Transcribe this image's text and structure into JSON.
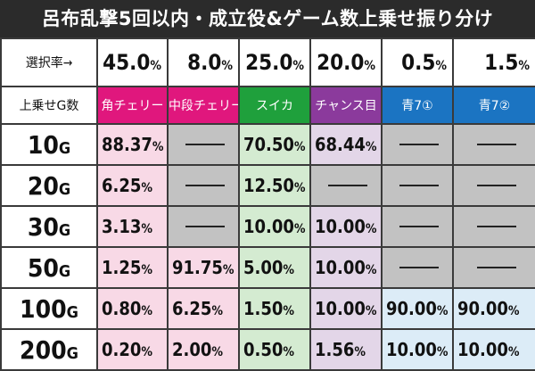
{
  "title": "呂布乱撃5回以内・成立役&ゲーム数上乗せ振り分け",
  "rate_label": "選択率→",
  "row_header_label": "上乗せG数",
  "columns": [
    {
      "name": "角チェリー",
      "rate": "45.0",
      "color": "#e0177d"
    },
    {
      "name": "中段チェリー",
      "rate": "8.0",
      "color": "#e0177d"
    },
    {
      "name": "スイカ",
      "rate": "25.0",
      "color": "#1fa03c"
    },
    {
      "name": "チャンス目",
      "rate": "20.0",
      "color": "#8b3a9c"
    },
    {
      "name": "青7①",
      "rate": "0.5",
      "color": "#1b74c2"
    },
    {
      "name": "青7②",
      "rate": "1.5",
      "color": "#1b74c2"
    }
  ],
  "pct_suffix": "%",
  "g_suffix": "G",
  "rows": [
    {
      "g": "10",
      "values": [
        "88.37",
        null,
        "70.50",
        "68.44",
        null,
        null
      ]
    },
    {
      "g": "20",
      "values": [
        "6.25",
        null,
        "12.50",
        null,
        null,
        null
      ]
    },
    {
      "g": "30",
      "values": [
        "3.13",
        null,
        "10.00",
        "10.00",
        null,
        null
      ]
    },
    {
      "g": "50",
      "values": [
        "1.25",
        "91.75",
        "5.00",
        "10.00",
        null,
        null
      ]
    },
    {
      "g": "100",
      "values": [
        "0.80",
        "6.25",
        "1.50",
        "10.00",
        "90.00",
        "90.00"
      ]
    },
    {
      "g": "200",
      "values": [
        "0.20",
        "2.00",
        "0.50",
        "1.56",
        "10.00",
        "10.00"
      ]
    }
  ]
}
